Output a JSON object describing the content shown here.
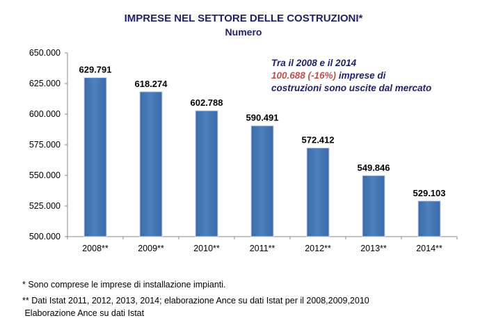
{
  "chart_data": {
    "type": "bar",
    "title": "IMPRESE NEL SETTORE DELLE COSTRUZIONI*",
    "subtitle": "Numero",
    "categories": [
      "2008**",
      "2009**",
      "2010**",
      "2011**",
      "2012**",
      "2013**",
      "2014**"
    ],
    "values": [
      629791,
      618274,
      602788,
      590491,
      572412,
      549846,
      529103
    ],
    "data_labels": [
      "629.791",
      "618.274",
      "602.788",
      "590.491",
      "572.412",
      "549.846",
      "529.103"
    ],
    "ylim": [
      500000,
      650000
    ],
    "yticks": [
      "500.000",
      "525.000",
      "550.000",
      "575.000",
      "600.000",
      "625.000",
      "650.000"
    ],
    "grid": false,
    "bar_color": "#4f81bd",
    "annotation": {
      "line1": "Tra il 2008 e il 2014",
      "highlight": "100.688 (-16%)",
      "rest": " imprese  di costruzioni sono uscite dal mercato",
      "highlight_color": "#c0504d"
    }
  },
  "footnotes": [
    "* Sono comprese le imprese di installazione impianti.",
    "** Dati Istat 2011, 2012, 2013, 2014; elaborazione Ance su dati Istat per il 2008,2009,2010",
    " Elaborazione Ance su dati Istat"
  ]
}
